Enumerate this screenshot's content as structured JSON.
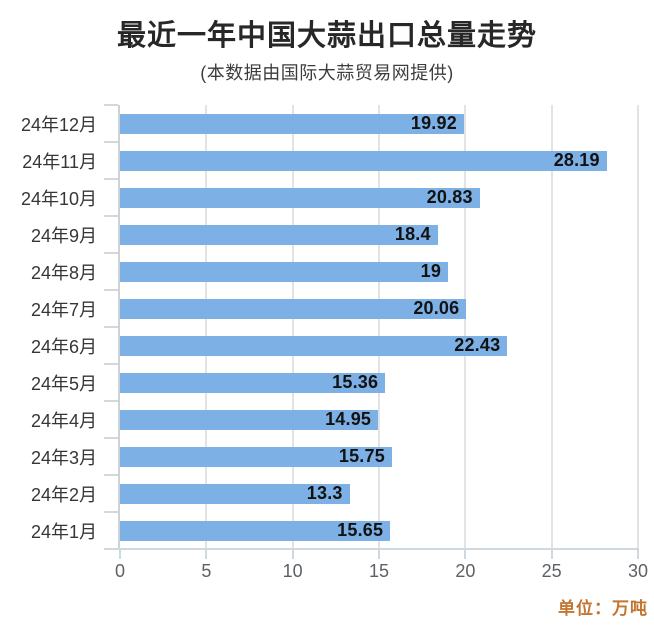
{
  "chart_data": {
    "type": "bar",
    "orientation": "horizontal",
    "title": "最近一年中国大蒜出口总量走势",
    "subtitle": "(本数据由国际大蒜贸易网提供)",
    "unit_note": "单位：万吨",
    "categories": [
      "24年12月",
      "24年11月",
      "24年10月",
      "24年9月",
      "24年8月",
      "24年7月",
      "24年6月",
      "24年5月",
      "24年4月",
      "24年3月",
      "24年2月",
      "24年1月"
    ],
    "values": [
      19.92,
      28.19,
      20.83,
      18.4,
      19,
      20.06,
      22.43,
      15.36,
      14.95,
      15.75,
      13.3,
      15.65
    ],
    "xlim": [
      0,
      30
    ],
    "x_ticks": [
      0,
      5,
      10,
      15,
      20,
      25,
      30
    ],
    "grid": true,
    "legend": "none",
    "value_label_position": "inside-end",
    "colors": {
      "bar": "#7db1e6",
      "gridline": "#e3e3e3",
      "axis_line": "#cdd9e1",
      "y_tick": "#d7d7d7",
      "title_text": "#272727",
      "subtitle_text": "#3d3d3d",
      "category_text": "#363636",
      "value_text": "#121212",
      "x_tick_text": "#5d6165",
      "unit_text": "#c3742f",
      "background": "#ffffff"
    }
  }
}
